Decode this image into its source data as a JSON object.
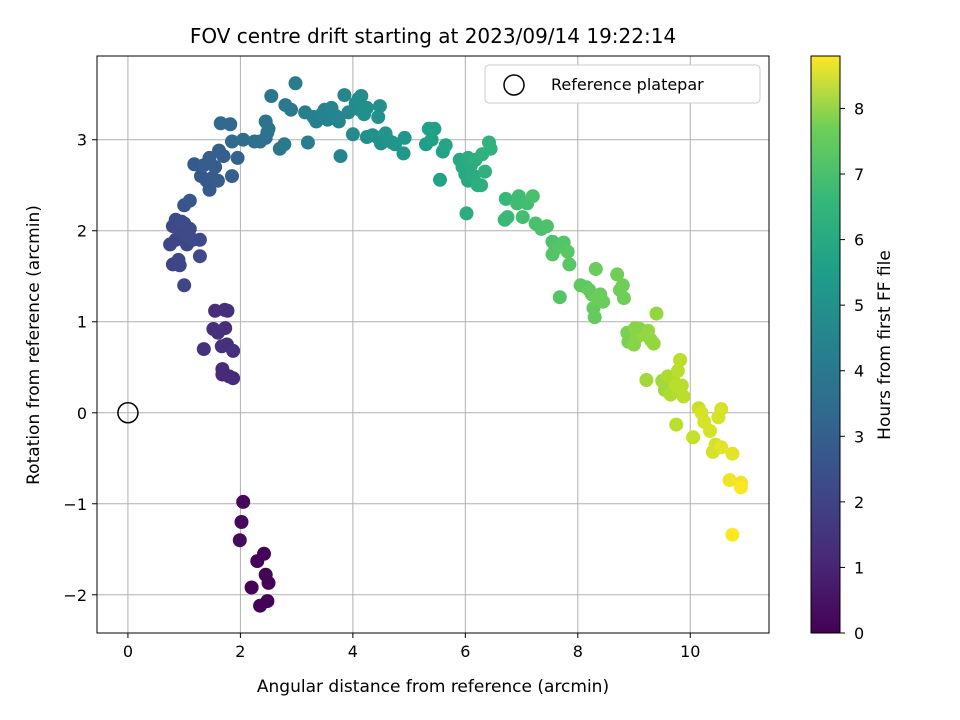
{
  "chart_data": {
    "type": "scatter",
    "title": "FOV centre drift starting at 2023/09/14 19:22:14",
    "xlabel": "Angular distance from reference (arcmin)",
    "ylabel": "Rotation from reference (arcmin)",
    "xlim": [
      -0.55,
      11.4
    ],
    "ylim": [
      -2.42,
      3.92
    ],
    "xticks": [
      0,
      2,
      4,
      6,
      8,
      10
    ],
    "yticks": [
      -2,
      -1,
      0,
      1,
      2,
      3
    ],
    "grid": true,
    "legend": {
      "placement": "top-right",
      "entries": [
        "Reference platepar"
      ]
    },
    "reference_point": {
      "x": 0,
      "y": 0,
      "marker": "open-circle",
      "label": "Reference platepar"
    },
    "colorbar": {
      "label": "Hours from first FF file",
      "range": [
        0,
        8.8
      ],
      "ticks": [
        0,
        1,
        2,
        3,
        4,
        5,
        6,
        7,
        8
      ],
      "colormap": "viridis"
    },
    "series": [
      {
        "marker": "filled-circle",
        "colored_by": "hours",
        "points": [
          {
            "x": 2.05,
            "y": -0.98,
            "h": 0.2
          },
          {
            "x": 2.02,
            "y": -1.2,
            "h": 0.22
          },
          {
            "x": 1.99,
            "y": -1.4,
            "h": 0.25
          },
          {
            "x": 2.42,
            "y": -1.55,
            "h": 0.05
          },
          {
            "x": 2.3,
            "y": -1.63,
            "h": 0.08
          },
          {
            "x": 2.45,
            "y": -1.78,
            "h": 0.1
          },
          {
            "x": 2.5,
            "y": -1.87,
            "h": 0.1
          },
          {
            "x": 2.2,
            "y": -1.92,
            "h": 0.12
          },
          {
            "x": 2.48,
            "y": -2.07,
            "h": 0.05
          },
          {
            "x": 2.35,
            "y": -2.12,
            "h": 0.05
          },
          {
            "x": 1.55,
            "y": 1.12,
            "h": 1.3
          },
          {
            "x": 1.72,
            "y": 1.13,
            "h": 1.3
          },
          {
            "x": 1.77,
            "y": 1.12,
            "h": 1.35
          },
          {
            "x": 1.52,
            "y": 0.92,
            "h": 1.3
          },
          {
            "x": 1.73,
            "y": 0.93,
            "h": 1.35
          },
          {
            "x": 1.6,
            "y": 0.88,
            "h": 1.35
          },
          {
            "x": 1.67,
            "y": 0.73,
            "h": 1.4
          },
          {
            "x": 1.76,
            "y": 0.75,
            "h": 1.35
          },
          {
            "x": 1.87,
            "y": 0.68,
            "h": 1.4
          },
          {
            "x": 1.35,
            "y": 0.7,
            "h": 1.4
          },
          {
            "x": 1.68,
            "y": 0.48,
            "h": 1.2
          },
          {
            "x": 1.68,
            "y": 0.42,
            "h": 1.2
          },
          {
            "x": 1.8,
            "y": 0.4,
            "h": 1.2
          },
          {
            "x": 1.87,
            "y": 0.38,
            "h": 1.2
          },
          {
            "x": 0.75,
            "y": 1.85,
            "h": 2.1
          },
          {
            "x": 0.85,
            "y": 1.9,
            "h": 2.1
          },
          {
            "x": 0.95,
            "y": 2.0,
            "h": 2.2
          },
          {
            "x": 1.05,
            "y": 1.85,
            "h": 2.1
          },
          {
            "x": 1.15,
            "y": 1.9,
            "h": 2.2
          },
          {
            "x": 0.8,
            "y": 2.05,
            "h": 2.2
          },
          {
            "x": 1.0,
            "y": 2.08,
            "h": 2.2
          },
          {
            "x": 0.85,
            "y": 2.12,
            "h": 2.2
          },
          {
            "x": 0.95,
            "y": 2.1,
            "h": 2.3
          },
          {
            "x": 1.05,
            "y": 1.95,
            "h": 2.3
          },
          {
            "x": 1.1,
            "y": 2.02,
            "h": 2.3
          },
          {
            "x": 0.8,
            "y": 1.63,
            "h": 2.0
          },
          {
            "x": 0.92,
            "y": 1.62,
            "h": 2.1
          },
          {
            "x": 1.0,
            "y": 1.4,
            "h": 2.1
          },
          {
            "x": 1.28,
            "y": 1.9,
            "h": 2.2
          },
          {
            "x": 1.28,
            "y": 1.72,
            "h": 2.2
          },
          {
            "x": 0.9,
            "y": 1.68,
            "h": 2.1
          },
          {
            "x": 1.0,
            "y": 2.28,
            "h": 2.6
          },
          {
            "x": 1.1,
            "y": 2.33,
            "h": 2.7
          },
          {
            "x": 1.18,
            "y": 2.73,
            "h": 2.8
          },
          {
            "x": 1.3,
            "y": 2.6,
            "h": 2.7
          },
          {
            "x": 1.4,
            "y": 2.55,
            "h": 2.8
          },
          {
            "x": 1.45,
            "y": 2.45,
            "h": 2.8
          },
          {
            "x": 1.5,
            "y": 2.58,
            "h": 2.8
          },
          {
            "x": 1.35,
            "y": 2.72,
            "h": 2.9
          },
          {
            "x": 1.45,
            "y": 2.8,
            "h": 2.9
          },
          {
            "x": 1.55,
            "y": 2.7,
            "h": 2.9
          },
          {
            "x": 1.6,
            "y": 2.55,
            "h": 2.9
          },
          {
            "x": 1.85,
            "y": 2.6,
            "h": 3.0
          },
          {
            "x": 1.62,
            "y": 2.88,
            "h": 3.0
          },
          {
            "x": 1.7,
            "y": 2.82,
            "h": 3.0
          },
          {
            "x": 1.95,
            "y": 2.8,
            "h": 3.1
          },
          {
            "x": 1.65,
            "y": 3.18,
            "h": 3.4
          },
          {
            "x": 1.82,
            "y": 3.17,
            "h": 3.4
          },
          {
            "x": 1.85,
            "y": 2.98,
            "h": 3.4
          },
          {
            "x": 2.05,
            "y": 3.0,
            "h": 3.5
          },
          {
            "x": 2.25,
            "y": 2.98,
            "h": 3.6
          },
          {
            "x": 2.35,
            "y": 2.98,
            "h": 3.6
          },
          {
            "x": 2.45,
            "y": 3.02,
            "h": 3.7
          },
          {
            "x": 2.45,
            "y": 3.2,
            "h": 3.8
          },
          {
            "x": 2.48,
            "y": 3.08,
            "h": 3.8
          },
          {
            "x": 2.5,
            "y": 3.12,
            "h": 3.8
          },
          {
            "x": 2.55,
            "y": 3.48,
            "h": 3.9
          },
          {
            "x": 2.7,
            "y": 2.9,
            "h": 3.9
          },
          {
            "x": 2.78,
            "y": 2.95,
            "h": 4.0
          },
          {
            "x": 2.8,
            "y": 3.38,
            "h": 4.0
          },
          {
            "x": 2.9,
            "y": 3.33,
            "h": 4.0
          },
          {
            "x": 2.98,
            "y": 3.62,
            "h": 4.1
          },
          {
            "x": 3.15,
            "y": 3.3,
            "h": 4.2
          },
          {
            "x": 3.2,
            "y": 2.97,
            "h": 4.2
          },
          {
            "x": 3.3,
            "y": 3.25,
            "h": 4.3
          },
          {
            "x": 3.35,
            "y": 3.2,
            "h": 4.3
          },
          {
            "x": 3.45,
            "y": 3.28,
            "h": 4.4
          },
          {
            "x": 3.5,
            "y": 3.33,
            "h": 4.4
          },
          {
            "x": 3.55,
            "y": 3.22,
            "h": 4.4
          },
          {
            "x": 3.62,
            "y": 3.35,
            "h": 4.5
          },
          {
            "x": 3.7,
            "y": 3.26,
            "h": 4.5
          },
          {
            "x": 3.75,
            "y": 3.2,
            "h": 4.5
          },
          {
            "x": 3.78,
            "y": 2.82,
            "h": 4.5
          },
          {
            "x": 3.85,
            "y": 3.49,
            "h": 4.6
          },
          {
            "x": 3.92,
            "y": 3.3,
            "h": 4.6
          },
          {
            "x": 4.0,
            "y": 3.06,
            "h": 4.7
          },
          {
            "x": 4.05,
            "y": 3.4,
            "h": 4.7
          },
          {
            "x": 4.1,
            "y": 3.45,
            "h": 4.8
          },
          {
            "x": 4.15,
            "y": 3.48,
            "h": 4.8
          },
          {
            "x": 4.12,
            "y": 3.33,
            "h": 4.8
          },
          {
            "x": 4.2,
            "y": 3.28,
            "h": 4.9
          },
          {
            "x": 4.25,
            "y": 3.35,
            "h": 4.9
          },
          {
            "x": 4.25,
            "y": 3.03,
            "h": 4.9
          },
          {
            "x": 4.35,
            "y": 3.05,
            "h": 5.0
          },
          {
            "x": 4.45,
            "y": 3.02,
            "h": 5.0
          },
          {
            "x": 4.45,
            "y": 3.25,
            "h": 5.0
          },
          {
            "x": 4.48,
            "y": 3.37,
            "h": 5.0
          },
          {
            "x": 4.5,
            "y": 2.96,
            "h": 5.0
          },
          {
            "x": 4.58,
            "y": 3.07,
            "h": 5.1
          },
          {
            "x": 4.62,
            "y": 3.0,
            "h": 5.1
          },
          {
            "x": 4.7,
            "y": 2.97,
            "h": 5.1
          },
          {
            "x": 4.75,
            "y": 2.95,
            "h": 5.2
          },
          {
            "x": 4.9,
            "y": 2.85,
            "h": 5.2
          },
          {
            "x": 4.92,
            "y": 3.02,
            "h": 5.2
          },
          {
            "x": 5.3,
            "y": 2.95,
            "h": 5.5
          },
          {
            "x": 5.35,
            "y": 3.12,
            "h": 5.6
          },
          {
            "x": 5.45,
            "y": 3.12,
            "h": 5.6
          },
          {
            "x": 5.4,
            "y": 3.0,
            "h": 5.6
          },
          {
            "x": 5.6,
            "y": 2.87,
            "h": 5.7
          },
          {
            "x": 5.65,
            "y": 2.94,
            "h": 5.8
          },
          {
            "x": 5.55,
            "y": 2.56,
            "h": 5.7
          },
          {
            "x": 5.9,
            "y": 2.78,
            "h": 5.9
          },
          {
            "x": 5.95,
            "y": 2.7,
            "h": 6.0
          },
          {
            "x": 6.0,
            "y": 2.62,
            "h": 6.0
          },
          {
            "x": 6.05,
            "y": 2.55,
            "h": 6.0
          },
          {
            "x": 6.05,
            "y": 2.8,
            "h": 6.1
          },
          {
            "x": 6.1,
            "y": 2.72,
            "h": 6.1
          },
          {
            "x": 6.15,
            "y": 2.6,
            "h": 6.1
          },
          {
            "x": 6.18,
            "y": 2.78,
            "h": 6.2
          },
          {
            "x": 6.22,
            "y": 2.5,
            "h": 6.2
          },
          {
            "x": 6.28,
            "y": 2.5,
            "h": 6.2
          },
          {
            "x": 6.3,
            "y": 2.84,
            "h": 6.3
          },
          {
            "x": 6.35,
            "y": 2.65,
            "h": 6.3
          },
          {
            "x": 6.42,
            "y": 2.97,
            "h": 6.4
          },
          {
            "x": 6.45,
            "y": 2.9,
            "h": 6.4
          },
          {
            "x": 6.02,
            "y": 2.19,
            "h": 6.1
          },
          {
            "x": 6.72,
            "y": 2.35,
            "h": 6.6
          },
          {
            "x": 6.75,
            "y": 2.15,
            "h": 6.7
          },
          {
            "x": 6.7,
            "y": 2.12,
            "h": 6.7
          },
          {
            "x": 6.92,
            "y": 2.3,
            "h": 6.8
          },
          {
            "x": 6.95,
            "y": 2.38,
            "h": 6.8
          },
          {
            "x": 7.02,
            "y": 2.15,
            "h": 6.9
          },
          {
            "x": 7.1,
            "y": 2.3,
            "h": 6.9
          },
          {
            "x": 7.2,
            "y": 2.38,
            "h": 7.0
          },
          {
            "x": 7.25,
            "y": 2.08,
            "h": 7.0
          },
          {
            "x": 7.35,
            "y": 2.02,
            "h": 7.0
          },
          {
            "x": 7.45,
            "y": 2.05,
            "h": 7.1
          },
          {
            "x": 7.55,
            "y": 1.88,
            "h": 7.1
          },
          {
            "x": 7.6,
            "y": 1.8,
            "h": 7.2
          },
          {
            "x": 7.65,
            "y": 1.82,
            "h": 7.2
          },
          {
            "x": 7.75,
            "y": 1.87,
            "h": 7.2
          },
          {
            "x": 7.55,
            "y": 1.74,
            "h": 7.2
          },
          {
            "x": 7.82,
            "y": 1.77,
            "h": 7.3
          },
          {
            "x": 7.85,
            "y": 1.63,
            "h": 7.3
          },
          {
            "x": 7.68,
            "y": 1.27,
            "h": 7.2
          },
          {
            "x": 8.05,
            "y": 1.4,
            "h": 7.4
          },
          {
            "x": 8.15,
            "y": 1.38,
            "h": 7.4
          },
          {
            "x": 8.2,
            "y": 1.35,
            "h": 7.5
          },
          {
            "x": 8.25,
            "y": 1.3,
            "h": 7.5
          },
          {
            "x": 8.28,
            "y": 1.15,
            "h": 7.5
          },
          {
            "x": 8.3,
            "y": 1.05,
            "h": 7.5
          },
          {
            "x": 8.35,
            "y": 1.25,
            "h": 7.6
          },
          {
            "x": 8.4,
            "y": 1.3,
            "h": 7.6
          },
          {
            "x": 8.45,
            "y": 1.22,
            "h": 7.6
          },
          {
            "x": 8.32,
            "y": 1.58,
            "h": 7.6
          },
          {
            "x": 8.7,
            "y": 1.52,
            "h": 7.7
          },
          {
            "x": 8.75,
            "y": 1.35,
            "h": 7.7
          },
          {
            "x": 8.8,
            "y": 1.4,
            "h": 7.7
          },
          {
            "x": 8.82,
            "y": 1.26,
            "h": 7.7
          },
          {
            "x": 8.88,
            "y": 0.88,
            "h": 7.8
          },
          {
            "x": 8.9,
            "y": 0.78,
            "h": 7.8
          },
          {
            "x": 9.0,
            "y": 0.75,
            "h": 7.9
          },
          {
            "x": 9.05,
            "y": 0.83,
            "h": 7.9
          },
          {
            "x": 9.1,
            "y": 0.92,
            "h": 7.9
          },
          {
            "x": 9.15,
            "y": 0.86,
            "h": 8.0
          },
          {
            "x": 9.25,
            "y": 0.9,
            "h": 8.0
          },
          {
            "x": 9.3,
            "y": 0.8,
            "h": 8.0
          },
          {
            "x": 9.35,
            "y": 0.76,
            "h": 8.0
          },
          {
            "x": 9.02,
            "y": 0.93,
            "h": 7.9
          },
          {
            "x": 9.4,
            "y": 1.09,
            "h": 8.0
          },
          {
            "x": 9.22,
            "y": 0.36,
            "h": 8.1
          },
          {
            "x": 9.5,
            "y": 0.35,
            "h": 8.1
          },
          {
            "x": 9.55,
            "y": 0.25,
            "h": 8.1
          },
          {
            "x": 9.6,
            "y": 0.4,
            "h": 8.2
          },
          {
            "x": 9.65,
            "y": 0.2,
            "h": 8.2
          },
          {
            "x": 9.7,
            "y": 0.35,
            "h": 8.2
          },
          {
            "x": 9.75,
            "y": 0.3,
            "h": 8.3
          },
          {
            "x": 9.78,
            "y": 0.46,
            "h": 8.3
          },
          {
            "x": 9.82,
            "y": 0.58,
            "h": 8.3
          },
          {
            "x": 9.85,
            "y": 0.3,
            "h": 8.3
          },
          {
            "x": 9.88,
            "y": 0.18,
            "h": 8.3
          },
          {
            "x": 9.75,
            "y": -0.13,
            "h": 8.3
          },
          {
            "x": 10.05,
            "y": -0.27,
            "h": 8.4
          },
          {
            "x": 10.15,
            "y": 0.05,
            "h": 8.4
          },
          {
            "x": 10.2,
            "y": 0.0,
            "h": 8.5
          },
          {
            "x": 10.25,
            "y": -0.1,
            "h": 8.5
          },
          {
            "x": 10.35,
            "y": -0.2,
            "h": 8.5
          },
          {
            "x": 10.45,
            "y": -0.35,
            "h": 8.5
          },
          {
            "x": 10.5,
            "y": -0.05,
            "h": 8.5
          },
          {
            "x": 10.55,
            "y": 0.04,
            "h": 8.5
          },
          {
            "x": 10.4,
            "y": -0.43,
            "h": 8.5
          },
          {
            "x": 10.55,
            "y": -0.38,
            "h": 8.6
          },
          {
            "x": 10.75,
            "y": -0.45,
            "h": 8.6
          },
          {
            "x": 10.7,
            "y": -0.74,
            "h": 8.7
          },
          {
            "x": 10.9,
            "y": -0.77,
            "h": 8.7
          },
          {
            "x": 10.9,
            "y": -0.82,
            "h": 8.8
          },
          {
            "x": 10.75,
            "y": -1.34,
            "h": 8.8
          }
        ]
      }
    ]
  }
}
